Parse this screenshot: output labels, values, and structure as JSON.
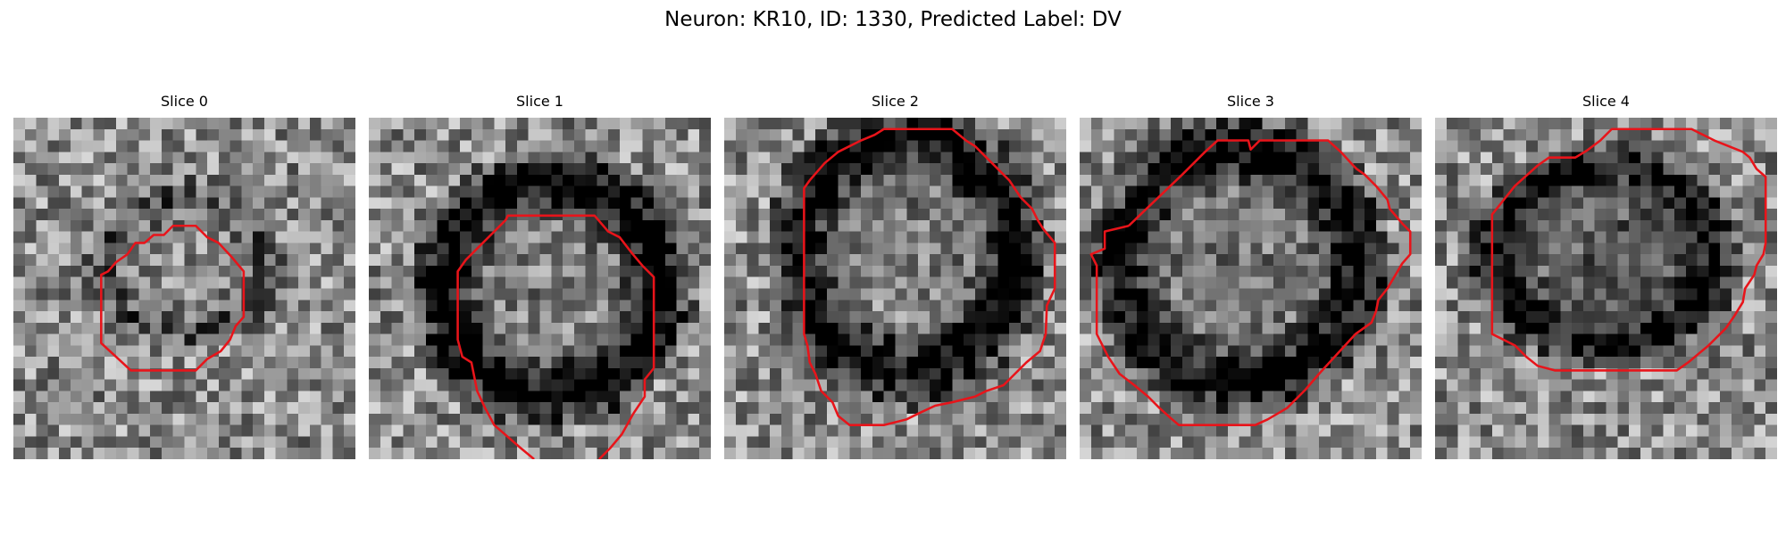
{
  "figure": {
    "title": "Neuron: KR10, ID: 1330, Predicted Label: DV"
  },
  "slices": [
    {
      "title": "Slice 0"
    },
    {
      "title": "Slice 1"
    },
    {
      "title": "Slice 2"
    },
    {
      "title": "Slice 3"
    },
    {
      "title": "Slice 4"
    }
  ],
  "contour_color": "#e8141a"
}
